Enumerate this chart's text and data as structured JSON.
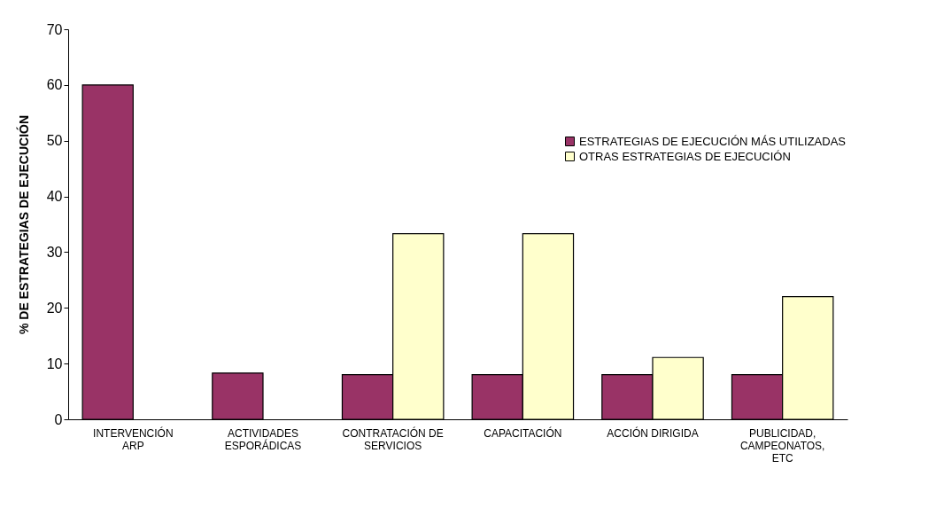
{
  "chart_data": {
    "type": "bar",
    "ylabel": "% DE ESTRATEGIAS DE EJECUCIÓN",
    "categories": [
      "INTERVENCIÓN ARP",
      "ACTIVIDADES ESPORÁDICAS",
      "CONTRATACIÓN DE SERVICIOS",
      "CAPACITACIÓN",
      "ACCIÓN DIRIGIDA",
      "PUBLICIDAD, CAMPEONATOS, ETC"
    ],
    "series": [
      {
        "name": "ESTRATEGIAS DE EJECUCIÓN MÁS UTILIZADAS",
        "color": "#993366",
        "values": [
          60,
          8.3,
          8,
          8,
          8,
          8
        ]
      },
      {
        "name": "OTRAS ESTRATEGIAS DE EJECUCIÓN",
        "color": "#ffffcc",
        "values": [
          null,
          null,
          33.3,
          33.3,
          11.1,
          22
        ]
      }
    ],
    "ylim": [
      0,
      70
    ],
    "yticks": [
      0,
      10,
      20,
      30,
      40,
      50,
      60,
      70
    ],
    "grid": false,
    "legend": "top right"
  }
}
